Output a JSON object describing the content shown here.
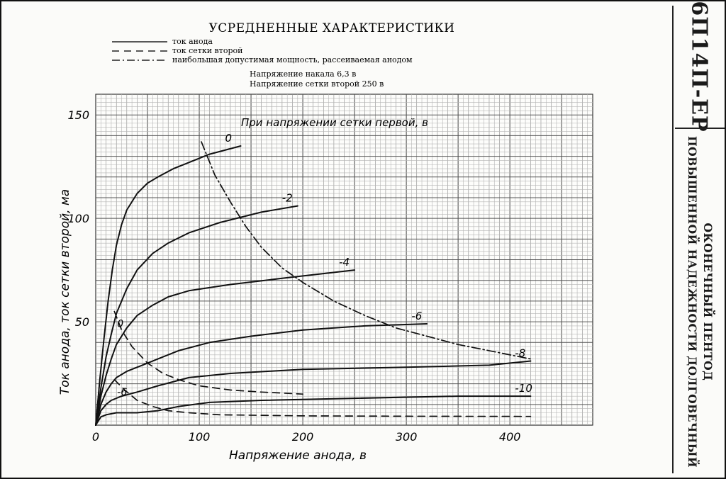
{
  "sidebar": {
    "tube_name": "6П14П-ЕР",
    "description_line1": "ОКОНЕЧНЫЙ ПЕНТОД",
    "description_line2": "ПОВЫШЕННОЙ НАДЕЖНОСТИ ДОЛГОВЕЧНЫЙ"
  },
  "chart_data": {
    "type": "line",
    "title": "УСРЕДНЕННЫЕ ХАРАКТЕРИСТИКИ",
    "legend": [
      {
        "label": "ток анода",
        "style": "solid"
      },
      {
        "label": "ток сетки второй",
        "style": "dashed"
      },
      {
        "label": "наибольшая допустимая мощность, рассеиваемая анодом",
        "style": "dash-dot"
      }
    ],
    "conditions": [
      "Напряжение накала 6,3 в",
      "Напряжение сетки второй 250 в"
    ],
    "family_label": "При напряжении сетки первой, в",
    "xlabel": "Напряжение анода, в",
    "ylabel": "Ток анода, ток сетки второй, ма",
    "xlim": [
      0,
      480
    ],
    "ylim": [
      0,
      160
    ],
    "x_ticks": [
      0,
      100,
      200,
      300,
      400
    ],
    "y_ticks": [
      50,
      100,
      150
    ],
    "grid": true,
    "series": [
      {
        "name": "0",
        "kind": "anode",
        "points": [
          [
            0,
            0
          ],
          [
            4,
            22
          ],
          [
            8,
            42
          ],
          [
            12,
            60
          ],
          [
            16,
            75
          ],
          [
            20,
            87
          ],
          [
            25,
            97
          ],
          [
            30,
            104
          ],
          [
            40,
            112
          ],
          [
            50,
            117
          ],
          [
            60,
            120
          ],
          [
            75,
            124
          ],
          [
            90,
            127
          ],
          [
            110,
            131
          ],
          [
            140,
            135
          ]
        ]
      },
      {
        "name": "-2",
        "kind": "anode",
        "points": [
          [
            0,
            0
          ],
          [
            5,
            18
          ],
          [
            10,
            33
          ],
          [
            15,
            44
          ],
          [
            20,
            54
          ],
          [
            30,
            66
          ],
          [
            40,
            75
          ],
          [
            55,
            83
          ],
          [
            70,
            88
          ],
          [
            90,
            93
          ],
          [
            120,
            98
          ],
          [
            160,
            103
          ],
          [
            195,
            106
          ]
        ]
      },
      {
        "name": "-4",
        "kind": "anode",
        "points": [
          [
            0,
            0
          ],
          [
            5,
            14
          ],
          [
            10,
            24
          ],
          [
            15,
            32
          ],
          [
            20,
            39
          ],
          [
            30,
            47
          ],
          [
            40,
            53
          ],
          [
            55,
            58
          ],
          [
            70,
            62
          ],
          [
            90,
            65
          ],
          [
            130,
            68
          ],
          [
            180,
            71
          ],
          [
            250,
            75
          ]
        ]
      },
      {
        "name": "-6",
        "kind": "anode",
        "points": [
          [
            0,
            0
          ],
          [
            5,
            10
          ],
          [
            10,
            16
          ],
          [
            15,
            20
          ],
          [
            20,
            23
          ],
          [
            30,
            26
          ],
          [
            45,
            29
          ],
          [
            60,
            32
          ],
          [
            80,
            36
          ],
          [
            110,
            40
          ],
          [
            150,
            43
          ],
          [
            200,
            46
          ],
          [
            260,
            48
          ],
          [
            320,
            49
          ]
        ]
      },
      {
        "name": "-8",
        "kind": "anode",
        "points": [
          [
            0,
            0
          ],
          [
            5,
            7
          ],
          [
            10,
            10
          ],
          [
            15,
            12
          ],
          [
            25,
            14
          ],
          [
            40,
            16
          ],
          [
            60,
            19
          ],
          [
            90,
            23
          ],
          [
            130,
            25
          ],
          [
            200,
            27
          ],
          [
            300,
            28
          ],
          [
            380,
            29
          ],
          [
            420,
            31
          ]
        ]
      },
      {
        "name": "-10",
        "kind": "anode",
        "points": [
          [
            0,
            0
          ],
          [
            5,
            4
          ],
          [
            10,
            5
          ],
          [
            20,
            6
          ],
          [
            40,
            6
          ],
          [
            60,
            7
          ],
          [
            80,
            9
          ],
          [
            110,
            11
          ],
          [
            160,
            12
          ],
          [
            250,
            13
          ],
          [
            350,
            14
          ],
          [
            420,
            14
          ]
        ]
      },
      {
        "name": "0",
        "kind": "screen",
        "points": [
          [
            18,
            55
          ],
          [
            25,
            46
          ],
          [
            35,
            38
          ],
          [
            50,
            30
          ],
          [
            65,
            25
          ],
          [
            80,
            22
          ],
          [
            100,
            19
          ],
          [
            130,
            17
          ],
          [
            160,
            16
          ],
          [
            200,
            15
          ]
        ]
      },
      {
        "name": "-6",
        "kind": "screen",
        "points": [
          [
            18,
            22
          ],
          [
            28,
            17
          ],
          [
            40,
            12
          ],
          [
            55,
            9
          ],
          [
            70,
            7
          ],
          [
            90,
            6
          ],
          [
            120,
            5
          ],
          [
            200,
            4.5
          ],
          [
            300,
            4.3
          ],
          [
            420,
            4.2
          ]
        ]
      },
      {
        "name": "Pmax",
        "kind": "power",
        "points": [
          [
            102,
            137
          ],
          [
            115,
            121
          ],
          [
            130,
            108
          ],
          [
            145,
            96
          ],
          [
            160,
            86
          ],
          [
            180,
            76
          ],
          [
            200,
            69
          ],
          [
            230,
            60
          ],
          [
            260,
            53
          ],
          [
            290,
            47
          ],
          [
            320,
            43
          ],
          [
            350,
            39
          ],
          [
            380,
            36
          ],
          [
            410,
            33
          ],
          [
            420,
            32
          ]
        ]
      }
    ],
    "curve_labels": [
      "0",
      "-2",
      "-4",
      "-6",
      "-8",
      "-10"
    ],
    "screen_curve_labels": [
      "0",
      "-6"
    ]
  }
}
